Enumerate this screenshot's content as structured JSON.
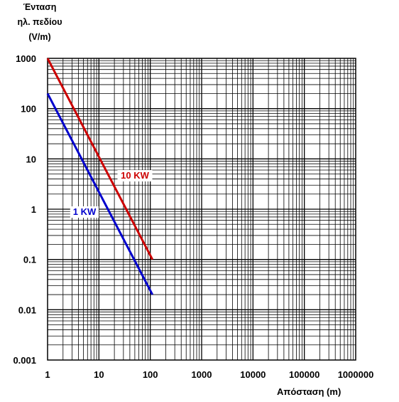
{
  "chart_data": {
    "type": "line",
    "ylabel_lines": [
      "Ένταση",
      "ηλ. πεδίου",
      "(V/m)"
    ],
    "xlabel": "Απόσταση (m)",
    "x_scale": "log",
    "y_scale": "log",
    "xlim": [
      1,
      1000000
    ],
    "ylim": [
      0.001,
      1000
    ],
    "x_ticks": [
      "1",
      "10",
      "100",
      "1000",
      "10000",
      "100000",
      "1000000"
    ],
    "y_ticks": [
      "1000",
      "100",
      "10",
      "1",
      "0.1",
      "0.01",
      "0.001"
    ],
    "grid": true,
    "series": [
      {
        "name": "10 KW",
        "color": "#cc0000",
        "x": [
          1,
          110
        ],
        "y": [
          1000,
          0.1
        ]
      },
      {
        "name": "1 KW",
        "color": "#0000cc",
        "x": [
          1,
          110
        ],
        "y": [
          200,
          0.02
        ]
      }
    ]
  }
}
